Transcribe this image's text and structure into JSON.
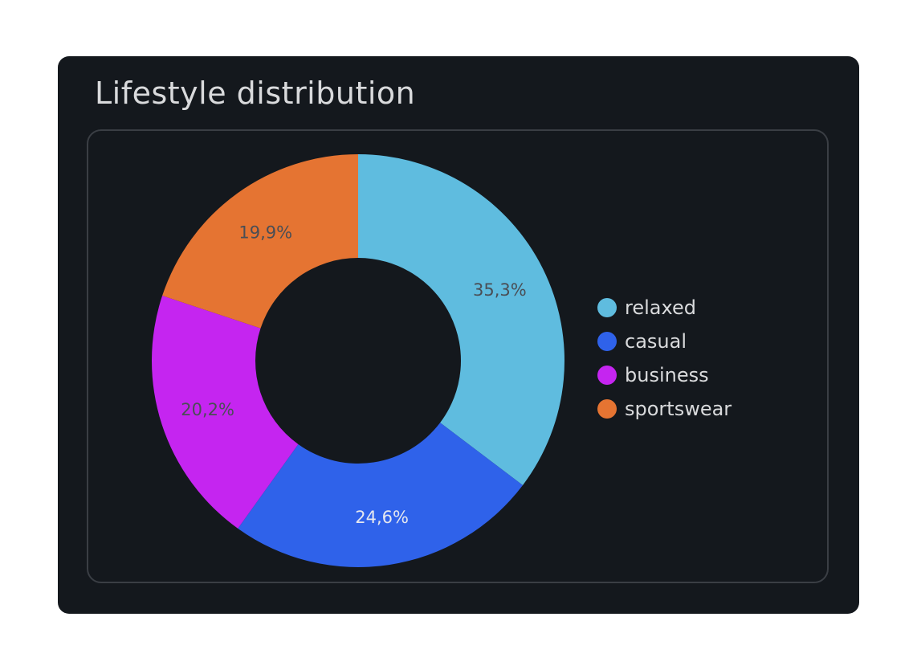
{
  "card": {
    "title": "Lifestyle distribution"
  },
  "chart_data": {
    "type": "pie",
    "donut": true,
    "categories": [
      "relaxed",
      "casual",
      "business",
      "sportswear"
    ],
    "values": [
      35.3,
      24.6,
      20.2,
      19.9
    ],
    "data_labels": [
      "35,3%",
      "24,6%",
      "20,2%",
      "19,9%"
    ],
    "colors": [
      "#5fbcdf",
      "#2f62ea",
      "#c525f0",
      "#e57432"
    ],
    "title": "Lifestyle distribution",
    "legend_position": "right",
    "start_angle_deg": 0,
    "direction": "clockwise"
  }
}
